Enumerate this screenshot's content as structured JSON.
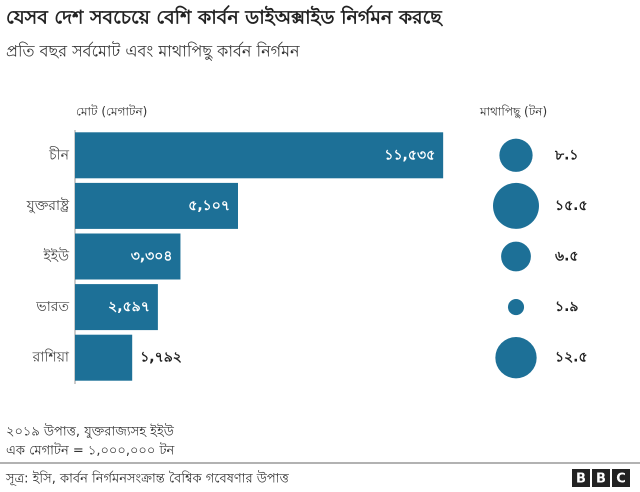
{
  "chart_data": {
    "type": "bar",
    "title": "যেসব দেশ সবচেয়ে বেশি কার্বন ডাইঅক্সাইড নির্গমন করছে",
    "subtitle": "প্রতি বছর সর্বমোট এবং মাথাপিছু কার্বন নির্গমন",
    "categories": [
      "চীন",
      "যুক্তরাষ্ট্র",
      "ইইউ",
      "ভারত",
      "রাশিয়া"
    ],
    "xlim": [
      0,
      12000
    ],
    "series": [
      {
        "name": "মোট (মেগাটন)",
        "color": "#1d7097",
        "values": [
          11535,
          5107,
          3304,
          2597,
          1792
        ],
        "value_labels": [
          "১১,৫৩৫",
          "৫,১০৭",
          "৩,৩০৪",
          "২,৫৯৭",
          "১,৭৯২"
        ]
      },
      {
        "name": "মাথাপিছু (টন)",
        "color": "#1d7097",
        "values": [
          8.1,
          15.5,
          6.5,
          1.9,
          12.5
        ],
        "value_labels": [
          "৮.১",
          "১৫.৫",
          "৬.৫",
          "১.৯",
          "১২.৫"
        ]
      }
    ],
    "notes": [
      "২০১৯ উপাত্ত, যুক্তরাজ্যসহ ইইউ",
      "এক মেগাটন = ১,০০০,০০০ টন"
    ],
    "source": "সূত্র: ইসি, কার্বন নির্গমনসংক্রান্ত বৈশ্বিক গবেষণার উপাত্ত",
    "logo": [
      "B",
      "B",
      "C"
    ]
  }
}
